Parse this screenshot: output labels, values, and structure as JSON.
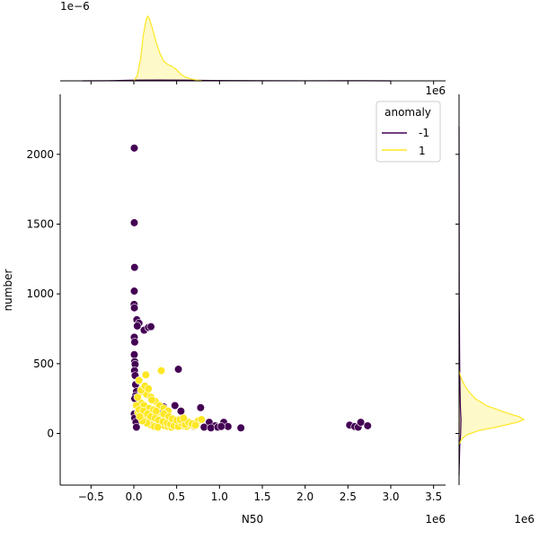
{
  "chart_data": {
    "type": "scatter",
    "title": "",
    "xlabel": "N50",
    "ylabel": "number",
    "x_offset_label": "1e6",
    "top_margin_offset_label": "1e−6",
    "top_margin_xaxis_offset_label": "1e6",
    "right_margin_offset_label": "1e6",
    "xlim": [
      -860000,
      3640000
    ],
    "ylim": [
      -370,
      2430
    ],
    "xticks": [
      -500000,
      0,
      500000,
      1000000,
      1500000,
      2000000,
      2500000,
      3000000,
      3500000
    ],
    "xtick_labels": [
      "−0.5",
      "0.0",
      "0.5",
      "1.0",
      "1.5",
      "2.0",
      "2.5",
      "3.0",
      "3.5"
    ],
    "yticks": [
      0,
      500,
      1000,
      1500,
      2000
    ],
    "ytick_labels": [
      "0",
      "500",
      "1000",
      "1500",
      "2000"
    ],
    "grid": false,
    "legend": {
      "title": "anomaly",
      "placement": "top-right",
      "entries": [
        {
          "label": "-1",
          "color": "#440154"
        },
        {
          "label": "1",
          "color": "#fde725"
        }
      ]
    },
    "series": [
      {
        "name": "-1",
        "color": "#440154",
        "points": [
          [
            5000,
            2045
          ],
          [
            5000,
            1510
          ],
          [
            8000,
            1190
          ],
          [
            5000,
            1020
          ],
          [
            3000,
            925
          ],
          [
            6000,
            900
          ],
          [
            35000,
            815
          ],
          [
            60000,
            790
          ],
          [
            120000,
            740
          ],
          [
            170000,
            760
          ],
          [
            200000,
            765
          ],
          [
            40000,
            770
          ],
          [
            5000,
            690
          ],
          [
            10000,
            655
          ],
          [
            5000,
            565
          ],
          [
            10000,
            515
          ],
          [
            15000,
            495
          ],
          [
            8000,
            450
          ],
          [
            15000,
            415
          ],
          [
            20000,
            350
          ],
          [
            30000,
            300
          ],
          [
            20000,
            270
          ],
          [
            10000,
            250
          ],
          [
            5000,
            140
          ],
          [
            10000,
            110
          ],
          [
            25000,
            80
          ],
          [
            30000,
            45
          ],
          [
            520000,
            460
          ],
          [
            780000,
            185
          ],
          [
            880000,
            80
          ],
          [
            1050000,
            80
          ],
          [
            950000,
            55
          ],
          [
            1100000,
            50
          ],
          [
            1250000,
            40
          ],
          [
            820000,
            45
          ],
          [
            700000,
            50
          ],
          [
            2520000,
            60
          ],
          [
            2580000,
            50
          ],
          [
            2620000,
            45
          ],
          [
            2650000,
            80
          ],
          [
            2730000,
            55
          ],
          [
            600000,
            85
          ],
          [
            650000,
            70
          ],
          [
            900000,
            40
          ],
          [
            980000,
            45
          ],
          [
            1020000,
            50
          ],
          [
            480000,
            200
          ],
          [
            550000,
            160
          ],
          [
            350000,
            190
          ],
          [
            300000,
            150
          ]
        ]
      },
      {
        "name": "1",
        "color": "#fde725",
        "points": [
          [
            140000,
            420
          ],
          [
            320000,
            450
          ],
          [
            60000,
            380
          ],
          [
            100000,
            300
          ],
          [
            150000,
            280
          ],
          [
            200000,
            260
          ],
          [
            250000,
            230
          ],
          [
            300000,
            200
          ],
          [
            350000,
            180
          ],
          [
            400000,
            160
          ],
          [
            80000,
            220
          ],
          [
            120000,
            200
          ],
          [
            180000,
            180
          ],
          [
            220000,
            150
          ],
          [
            280000,
            130
          ],
          [
            330000,
            110
          ],
          [
            380000,
            100
          ],
          [
            420000,
            90
          ],
          [
            460000,
            80
          ],
          [
            500000,
            70
          ],
          [
            540000,
            60
          ],
          [
            580000,
            55
          ],
          [
            620000,
            50
          ],
          [
            660000,
            60
          ],
          [
            700000,
            55
          ],
          [
            750000,
            90
          ],
          [
            790000,
            100
          ],
          [
            50000,
            150
          ],
          [
            90000,
            130
          ],
          [
            130000,
            110
          ],
          [
            170000,
            100
          ],
          [
            210000,
            90
          ],
          [
            240000,
            80
          ],
          [
            270000,
            70
          ],
          [
            310000,
            60
          ],
          [
            360000,
            55
          ],
          [
            400000,
            50
          ],
          [
            440000,
            45
          ],
          [
            480000,
            60
          ],
          [
            30000,
            200
          ],
          [
            60000,
            170
          ],
          [
            110000,
            160
          ],
          [
            160000,
            140
          ],
          [
            200000,
            120
          ],
          [
            250000,
            110
          ],
          [
            290000,
            95
          ],
          [
            340000,
            85
          ],
          [
            390000,
            75
          ],
          [
            430000,
            65
          ],
          [
            470000,
            55
          ],
          [
            520000,
            50
          ],
          [
            560000,
            75
          ],
          [
            600000,
            65
          ],
          [
            640000,
            80
          ],
          [
            680000,
            70
          ],
          [
            720000,
            60
          ],
          [
            200000,
            60
          ],
          [
            240000,
            50
          ],
          [
            280000,
            45
          ],
          [
            150000,
            75
          ],
          [
            100000,
            90
          ],
          [
            70000,
            120
          ],
          [
            45000,
            260
          ],
          [
            85000,
            310
          ],
          [
            130000,
            340
          ],
          [
            170000,
            320
          ],
          [
            210000,
            240
          ],
          [
            350000,
            140
          ],
          [
            410000,
            120
          ],
          [
            450000,
            105
          ],
          [
            500000,
            95
          ],
          [
            540000,
            100
          ],
          [
            580000,
            110
          ],
          [
            230000,
            170
          ],
          [
            260000,
            160
          ]
        ]
      }
    ],
    "top_marginal": {
      "type": "kde",
      "axis_var": "N50",
      "series": [
        {
          "name": "-1",
          "color": "#440154",
          "x": [
            -600000,
            -300000,
            0,
            300000,
            600000,
            900000,
            1200000,
            1500000,
            2000000,
            2500000,
            2700000,
            3000000
          ],
          "density": [
            0,
            0.002,
            0.01,
            0.012,
            0.01,
            0.006,
            0.004,
            0.002,
            0.0005,
            0.002,
            0.002,
            0
          ]
        },
        {
          "name": "1",
          "color": "#fde725",
          "x": [
            0,
            40000,
            80000,
            110000,
            140000,
            160000,
            180000,
            200000,
            230000,
            260000,
            300000,
            350000,
            400000,
            450000,
            500000,
            560000,
            620000,
            700000,
            800000
          ],
          "density": [
            0,
            0.08,
            0.35,
            0.7,
            0.92,
            1.0,
            0.97,
            0.88,
            0.75,
            0.6,
            0.44,
            0.3,
            0.25,
            0.22,
            0.17,
            0.09,
            0.05,
            0.02,
            0
          ]
        }
      ]
    },
    "right_marginal": {
      "type": "kde",
      "axis_var": "number",
      "series": [
        {
          "name": "-1",
          "color": "#440154",
          "y": [
            -300,
            -100,
            0,
            100,
            200,
            400,
            600,
            800,
            1000,
            1500,
            2000,
            2200
          ],
          "density": [
            0,
            0.01,
            0.025,
            0.03,
            0.02,
            0.012,
            0.008,
            0.006,
            0.003,
            0.002,
            0.001,
            0
          ]
        },
        {
          "name": "1",
          "color": "#fde725",
          "y": [
            -80,
            -40,
            -10,
            20,
            50,
            80,
            100,
            120,
            150,
            200,
            250,
            300,
            350,
            400,
            450
          ],
          "density": [
            0,
            0.04,
            0.12,
            0.3,
            0.62,
            0.9,
            1.0,
            0.93,
            0.72,
            0.42,
            0.25,
            0.15,
            0.08,
            0.03,
            0
          ]
        }
      ]
    }
  }
}
